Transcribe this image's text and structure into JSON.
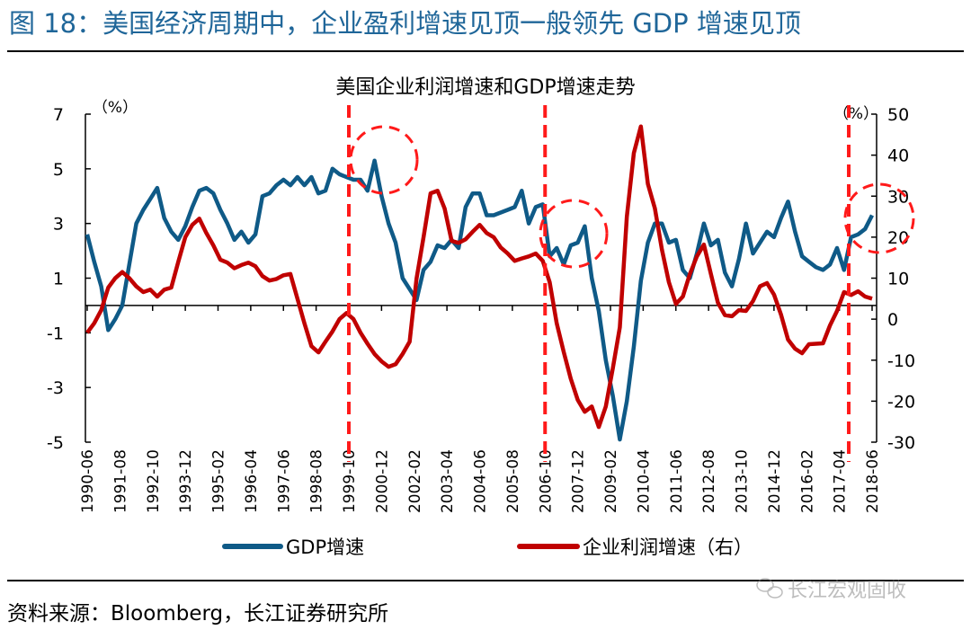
{
  "figure_title": "图 18：美国经济周期中，企业盈利增速见顶一般领先 GDP 增速见顶",
  "source": "资料来源：Bloomberg，长江证券研究所",
  "watermark": "长江宏观固收",
  "colors": {
    "title": "#1f6699",
    "gdp": "#0f5a87",
    "profit": "#c00000",
    "annotation": "#ff1a1a"
  },
  "chart_data": {
    "type": "line",
    "title": "美国企业利润增速和GDP增速走势",
    "y_left": {
      "unit_label": "（%）",
      "range": [
        -5,
        7
      ],
      "ticks": [
        7,
        5,
        3,
        1,
        -1,
        -3,
        -5
      ]
    },
    "y_right": {
      "unit_label": "（%）",
      "range": [
        -30,
        50
      ],
      "ticks": [
        50,
        40,
        30,
        20,
        10,
        0,
        -10,
        -20,
        -30
      ]
    },
    "x_tick_labels": [
      "1990-06",
      "1991-08",
      "1992-10",
      "1993-12",
      "1995-02",
      "1996-04",
      "1997-06",
      "1998-08",
      "1999-10",
      "2000-12",
      "2002-02",
      "2003-04",
      "2004-06",
      "2005-08",
      "2006-10",
      "2007-12",
      "2009-02",
      "2010-04",
      "2011-06",
      "2012-08",
      "2013-10",
      "2014-12",
      "2016-02",
      "2017-04",
      "2018-06"
    ],
    "x_start": "1990-06",
    "x_frequency": "quarterly",
    "grid": false,
    "legend_position": "bottom",
    "series": [
      {
        "name": "GDP增速",
        "axis": "left",
        "color": "#0f5a87",
        "values": [
          2.6,
          1.6,
          0.7,
          -0.9,
          -0.5,
          0.0,
          1.5,
          3.0,
          3.5,
          3.9,
          4.3,
          3.2,
          2.7,
          2.4,
          2.9,
          3.6,
          4.2,
          4.3,
          4.1,
          3.5,
          3.0,
          2.4,
          2.7,
          2.3,
          2.6,
          4.0,
          4.1,
          4.4,
          4.6,
          4.4,
          4.7,
          4.4,
          4.7,
          4.1,
          4.2,
          5.0,
          4.8,
          4.7,
          4.6,
          4.6,
          4.2,
          5.3,
          4.0,
          3.0,
          2.3,
          1.0,
          0.6,
          0.2,
          1.3,
          1.6,
          2.2,
          2.1,
          2.4,
          2.1,
          3.6,
          4.1,
          4.1,
          3.3,
          3.3,
          3.4,
          3.5,
          3.6,
          4.2,
          3.0,
          3.6,
          3.7,
          1.8,
          2.1,
          1.5,
          2.2,
          2.3,
          2.9,
          1.0,
          -0.2,
          -2.0,
          -3.3,
          -4.9,
          -3.5,
          -1.5,
          0.9,
          2.3,
          3.0,
          3.0,
          2.3,
          2.4,
          1.3,
          1.0,
          1.9,
          3.0,
          2.2,
          2.4,
          1.2,
          0.7,
          1.7,
          3.0,
          1.9,
          2.3,
          2.7,
          2.5,
          3.2,
          3.8,
          2.7,
          1.8,
          1.6,
          1.4,
          1.3,
          1.5,
          2.1,
          1.3,
          2.5,
          2.6,
          2.8,
          3.3
        ]
      },
      {
        "name": "企业利润增速（右）",
        "axis": "right",
        "color": "#c00000",
        "values": [
          -3.3,
          -1.0,
          2.2,
          7.7,
          10.0,
          11.5,
          10.0,
          8.0,
          6.6,
          7.2,
          5.5,
          7.2,
          7.7,
          14.0,
          20.0,
          23.0,
          24.5,
          21.0,
          18.0,
          14.5,
          13.8,
          12.4,
          13.2,
          13.8,
          12.9,
          10.5,
          9.4,
          9.8,
          10.7,
          11.0,
          5.0,
          -1.0,
          -6.6,
          -8.1,
          -5.5,
          -3.0,
          0.0,
          1.5,
          0.0,
          -3.3,
          -6.0,
          -8.5,
          -10.3,
          -11.6,
          -11.0,
          -8.5,
          -5.5,
          9.9,
          20.0,
          30.7,
          31.3,
          27.0,
          19.1,
          18.6,
          19.5,
          21.3,
          23.0,
          21.0,
          20.0,
          17.5,
          16.0,
          14.2,
          14.8,
          15.3,
          16.0,
          14.2,
          9.0,
          -1.0,
          -8.0,
          -14.5,
          -19.7,
          -22.6,
          -21.3,
          -26.3,
          -21.3,
          -12.0,
          -2.0,
          25.0,
          40.5,
          47.0,
          33.0,
          27.0,
          17.0,
          9.0,
          3.7,
          5.5,
          11.0,
          15.3,
          18.2,
          11.0,
          4.0,
          1.0,
          0.7,
          2.2,
          2.0,
          4.4,
          8.0,
          8.8,
          6.0,
          1.1,
          -5.0,
          -7.2,
          -8.3,
          -6.1,
          -6.0,
          -5.9,
          -1.5,
          2.0,
          6.6,
          5.9,
          6.8,
          5.5,
          5.0
        ]
      }
    ],
    "annotations": {
      "peak_markers": [
        "1999-10",
        "2006-10",
        "2017-08"
      ]
    }
  }
}
